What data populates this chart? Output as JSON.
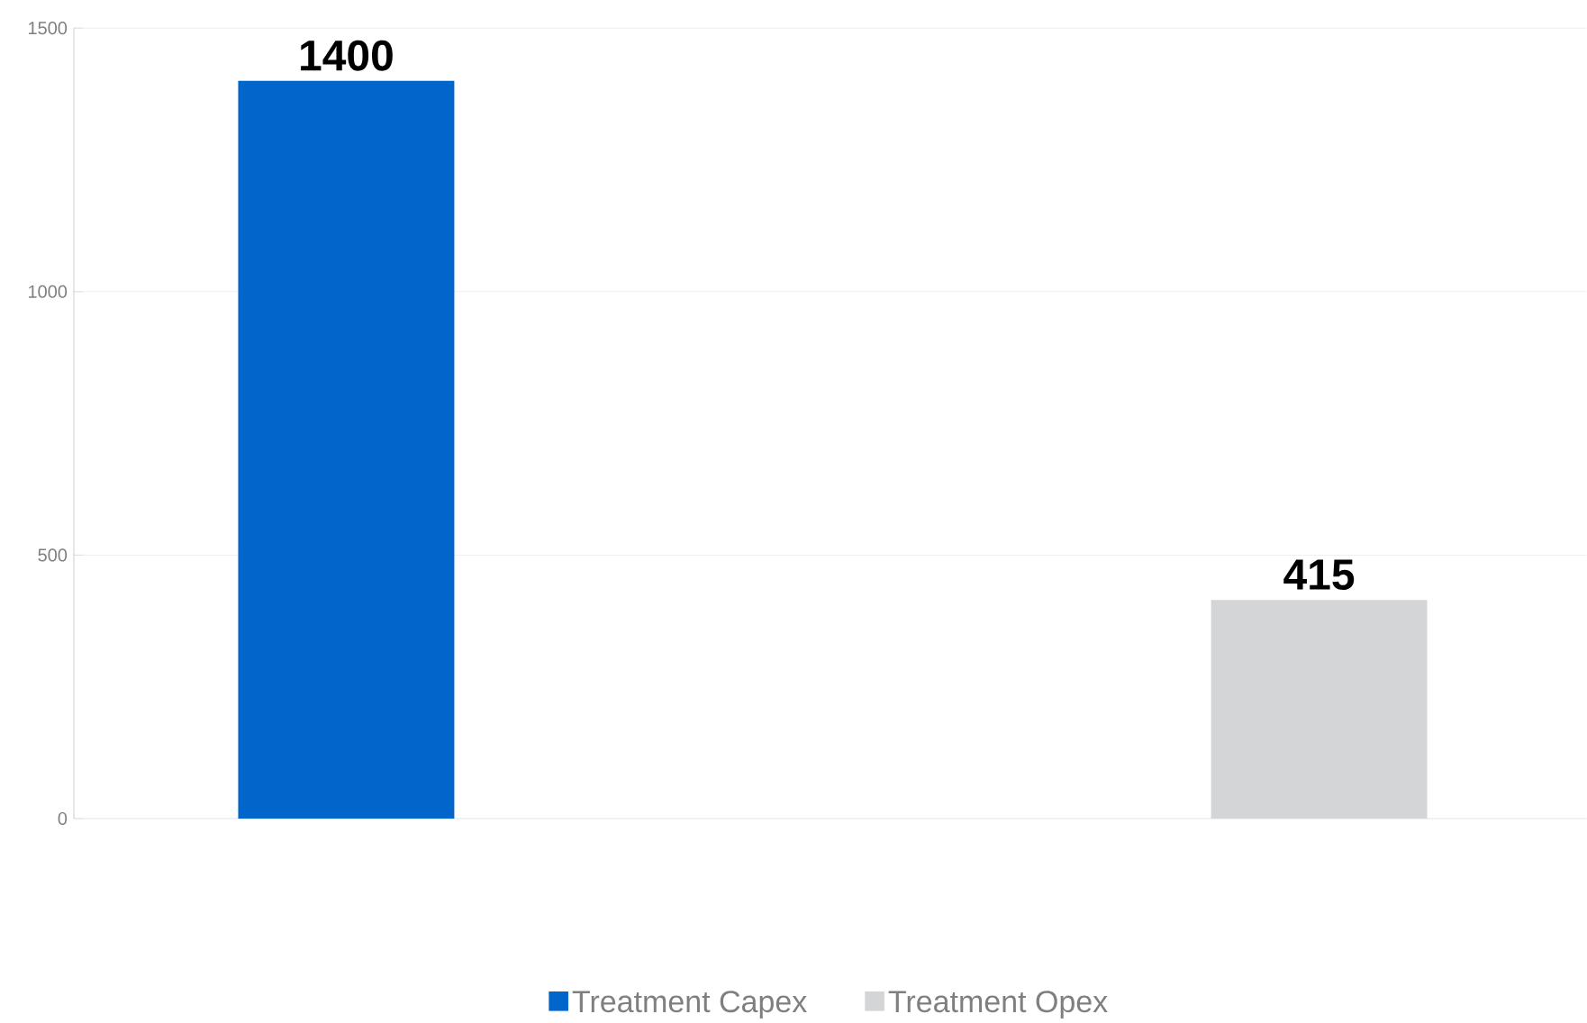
{
  "chart_data": {
    "type": "bar",
    "categories": [
      null,
      null
    ],
    "series": [
      {
        "name": "Treatment Capex",
        "color": "#0066cc",
        "values": [
          1400,
          null
        ]
      },
      {
        "name": "Treatment Opex",
        "color": "#d4d5d7",
        "values": [
          null,
          415
        ]
      }
    ],
    "ylim": [
      0,
      1500
    ],
    "yticks": [
      0,
      500,
      1000,
      1500
    ],
    "grid": "y",
    "legend": "bottom",
    "data_labels": true
  }
}
